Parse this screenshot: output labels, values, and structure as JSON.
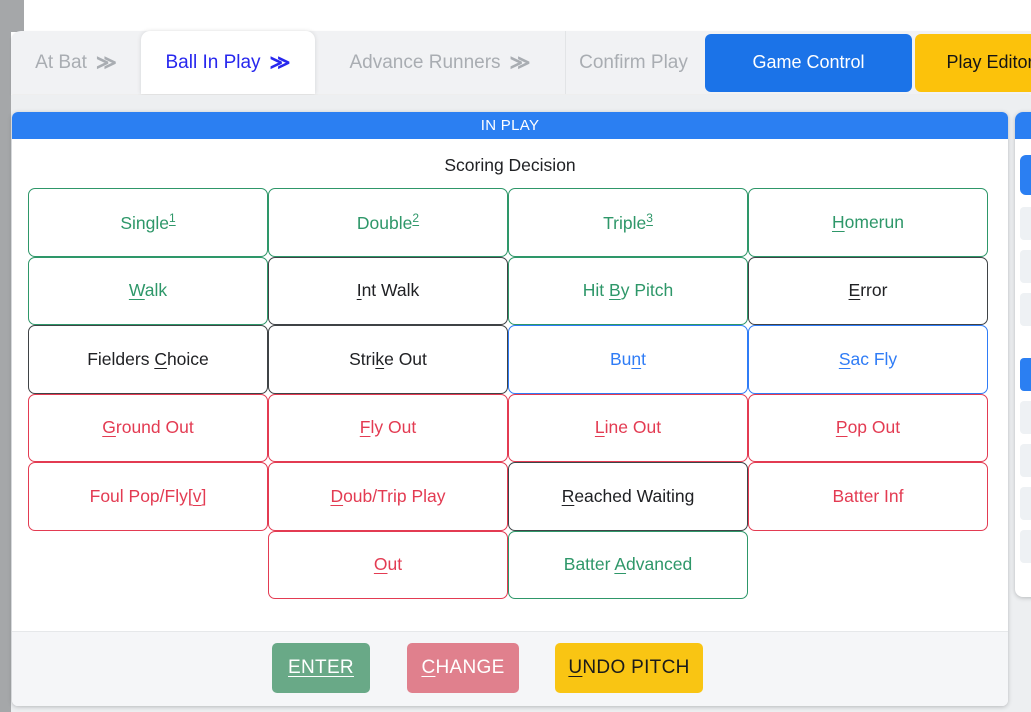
{
  "tabbar": {
    "tabs": [
      {
        "label": "At Bat",
        "arrow": true,
        "active": false
      },
      {
        "label": "Ball In Play",
        "arrow": true,
        "active": true
      },
      {
        "label": "Advance Runners",
        "arrow": true,
        "active": false
      },
      {
        "label": "Confirm Play",
        "arrow": false,
        "active": false
      }
    ],
    "game_control_label": "Game Control",
    "play_editor_label": "Play Editor"
  },
  "icons": {
    "double_arrow": "≫"
  },
  "in_play_panel": {
    "header": "IN PLAY",
    "title": "Scoring Decision",
    "grid": [
      [
        {
          "pre": "Single",
          "key": "1",
          "post": "",
          "sup": true,
          "color": "green"
        },
        {
          "pre": "Double",
          "key": "2",
          "post": "",
          "sup": true,
          "color": "green"
        },
        {
          "pre": "Triple",
          "key": "3",
          "post": "",
          "sup": true,
          "color": "green"
        },
        {
          "pre": "",
          "key": "H",
          "post": "omerun",
          "color": "green"
        }
      ],
      [
        {
          "pre": "",
          "key": "W",
          "post": "alk",
          "color": "green"
        },
        {
          "pre": "",
          "key": "I",
          "post": "nt Walk",
          "color": "dark"
        },
        {
          "pre": "Hit ",
          "key": "B",
          "post": "y Pitch",
          "color": "green"
        },
        {
          "pre": "",
          "key": "E",
          "post": "rror",
          "color": "dark"
        }
      ],
      [
        {
          "pre": "Fielders ",
          "key": "C",
          "post": "hoice",
          "color": "dark"
        },
        {
          "pre": "Stri",
          "key": "k",
          "post": "e Out",
          "color": "dark"
        },
        {
          "pre": "Bu",
          "key": "n",
          "post": "t",
          "color": "blue"
        },
        {
          "pre": "",
          "key": "S",
          "post": "ac Fly",
          "color": "blue"
        }
      ],
      [
        {
          "pre": "",
          "key": "G",
          "post": "round Out",
          "color": "red"
        },
        {
          "pre": "",
          "key": "F",
          "post": "ly Out",
          "color": "red"
        },
        {
          "pre": "",
          "key": "L",
          "post": "ine Out",
          "color": "red"
        },
        {
          "pre": "",
          "key": "P",
          "post": "op Out",
          "color": "red"
        }
      ],
      [
        {
          "pre": "Foul Pop/Fly[",
          "key": "v",
          "post": "]",
          "color": "red"
        },
        {
          "pre": "",
          "key": "D",
          "post": "oub/Trip Play",
          "color": "red"
        },
        {
          "pre": "",
          "key": "R",
          "post": "eached Waiting",
          "color": "dark"
        },
        {
          "pre": "Batter Inf",
          "key": "",
          "post": "",
          "color": "red"
        }
      ],
      [
        null,
        {
          "pre": "",
          "key": "O",
          "post": "ut",
          "color": "red"
        },
        {
          "pre": "Batter ",
          "key": "A",
          "post": "dvanced",
          "color": "green"
        },
        null
      ]
    ],
    "footer_buttons": [
      {
        "pre": "",
        "key": "ENTER",
        "post": "",
        "style": "green",
        "name": "enter-button"
      },
      {
        "pre": "",
        "key": "C",
        "post": "HANGE",
        "style": "pink",
        "name": "change-button"
      },
      {
        "pre": "",
        "key": "U",
        "post": "NDO PITCH",
        "style": "yellow",
        "name": "undo-pitch-button"
      }
    ]
  },
  "colors": {
    "active_tab_text": "#2727ee",
    "inactive_tab_text": "#a9adb2",
    "panel_header_blue": "#2b7ff2",
    "game_control_blue": "#1b73e8",
    "play_editor_yellow": "#fcc20b",
    "hit_green": "#2e9769",
    "neutral_dark": "#202124",
    "bunt_blue": "#2f7cf6",
    "out_red": "#e33b52",
    "enter_green": "#69a987",
    "change_pink": "#e0808d",
    "undo_yellow": "#f9c513"
  }
}
